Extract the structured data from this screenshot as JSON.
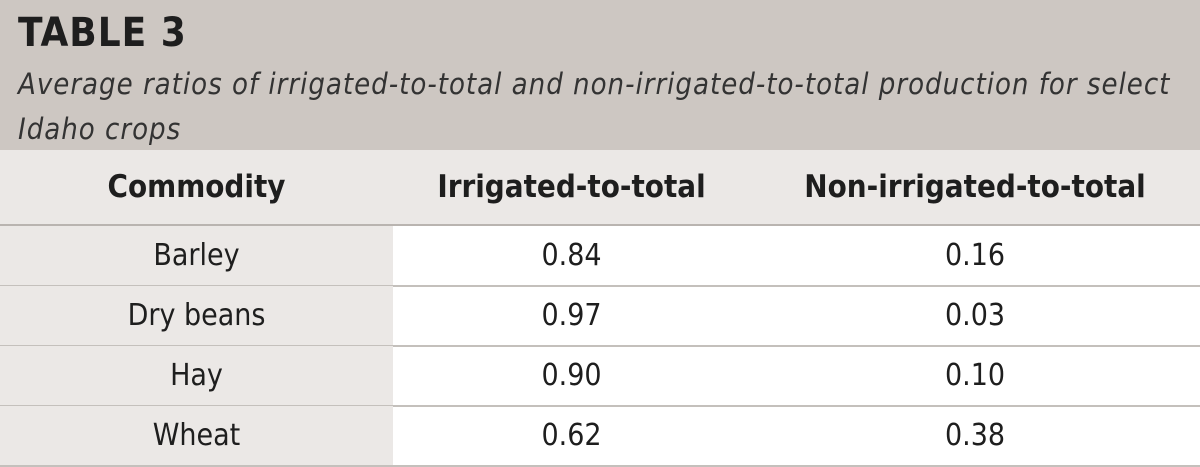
{
  "header": {
    "title": "TABLE 3",
    "subtitle": "Average ratios of irrigated-to-total and non-irrigated-to-total production for select Idaho crops"
  },
  "table": {
    "columns": [
      "Commodity",
      "Irrigated-to-total",
      "Non-irrigated-to-total"
    ],
    "rows": [
      [
        "Barley",
        "0.84",
        "0.16"
      ],
      [
        "Dry beans",
        "0.97",
        "0.03"
      ],
      [
        "Hay",
        "0.90",
        "0.10"
      ],
      [
        "Wheat",
        "0.62",
        "0.38"
      ]
    ]
  }
}
